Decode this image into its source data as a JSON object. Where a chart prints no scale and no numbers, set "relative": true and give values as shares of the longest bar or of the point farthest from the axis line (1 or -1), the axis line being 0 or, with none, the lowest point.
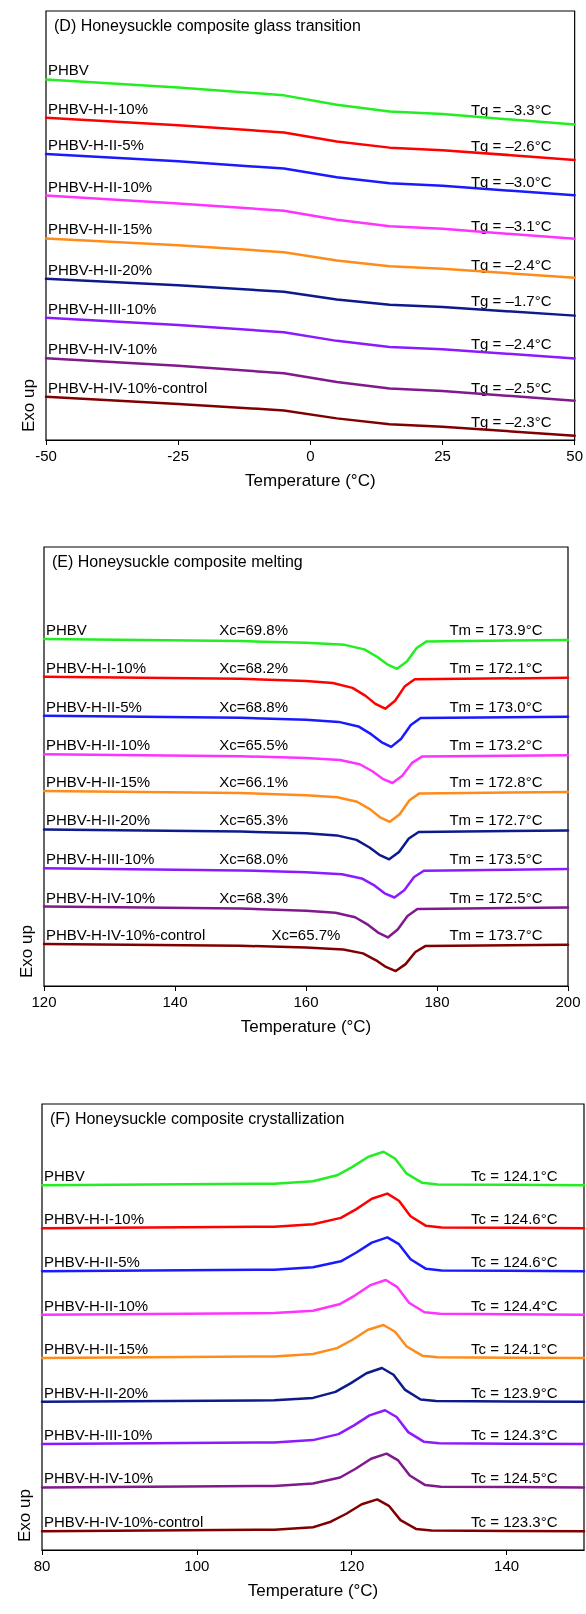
{
  "chart_data": [
    {
      "type": "line",
      "title": "(D) Honeysuckle composite glass transition",
      "xlabel": "Temperature (°C)",
      "ylabel": "Exo up",
      "relative": true,
      "tick_labels": "x",
      "xlim": [
        -50,
        50
      ],
      "xticks": [
        -50,
        -25,
        0,
        25,
        50
      ],
      "series": [
        {
          "name": "PHBV",
          "color": "#22ee22",
          "x": [
            -50,
            -25,
            -5,
            5,
            15,
            25,
            50
          ],
          "values": [
            1.0,
            0.978,
            0.956,
            0.93,
            0.911,
            0.904,
            0.875
          ]
        },
        {
          "name": "PHBV-H-I-10%",
          "color": "#ff0000",
          "x": [
            -50,
            -25,
            -5,
            5,
            15,
            25,
            50
          ],
          "values": [
            0.894,
            0.873,
            0.853,
            0.828,
            0.811,
            0.804,
            0.777
          ]
        },
        {
          "name": "PHBV-H-II-5%",
          "color": "#1a1aff",
          "x": [
            -50,
            -25,
            -5,
            5,
            15,
            25,
            50
          ],
          "values": [
            0.793,
            0.773,
            0.753,
            0.729,
            0.712,
            0.705,
            0.679
          ]
        },
        {
          "name": "PHBV-H-II-10%",
          "color": "#ff33ff",
          "x": [
            -50,
            -25,
            -5,
            5,
            15,
            25,
            50
          ],
          "values": [
            0.678,
            0.656,
            0.636,
            0.611,
            0.593,
            0.586,
            0.558
          ]
        },
        {
          "name": "PHBV-H-II-15%",
          "color": "#ff8c1a",
          "x": [
            -50,
            -25,
            -5,
            5,
            15,
            25,
            50
          ],
          "values": [
            0.559,
            0.54,
            0.521,
            0.498,
            0.482,
            0.475,
            0.45
          ]
        },
        {
          "name": "PHBV-H-II-20%",
          "color": "#0d1a8c",
          "x": [
            -50,
            -25,
            -5,
            5,
            15,
            25,
            50
          ],
          "values": [
            0.447,
            0.429,
            0.411,
            0.39,
            0.375,
            0.369,
            0.345
          ]
        },
        {
          "name": "PHBV-H-III-10%",
          "color": "#8c1aff",
          "x": [
            -50,
            -25,
            -5,
            5,
            15,
            25,
            50
          ],
          "values": [
            0.339,
            0.319,
            0.299,
            0.275,
            0.258,
            0.252,
            0.226
          ]
        },
        {
          "name": "PHBV-H-IV-10%",
          "color": "#80198c",
          "x": [
            -50,
            -25,
            -5,
            5,
            15,
            25,
            50
          ],
          "values": [
            0.227,
            0.206,
            0.185,
            0.161,
            0.143,
            0.136,
            0.109
          ]
        },
        {
          "name": "PHBV-H-IV-10%-control",
          "color": "#800000",
          "x": [
            -50,
            -25,
            -5,
            5,
            15,
            25,
            50
          ],
          "values": [
            0.12,
            0.1,
            0.082,
            0.06,
            0.044,
            0.037,
            0.012
          ]
        }
      ],
      "annotations": [
        {
          "text": "Tg = –3.3°C",
          "x": 38,
          "y": 0.89
        },
        {
          "text": "Tg = –2.6°C",
          "x": 38,
          "y": 0.79
        },
        {
          "text": "Tg = –3.0°C",
          "x": 38,
          "y": 0.69
        },
        {
          "text": "Tg = –3.1°C",
          "x": 38,
          "y": 0.57
        },
        {
          "text": "Tg = –2.4°C",
          "x": 38,
          "y": 0.46
        },
        {
          "text": "Tg = –1.7°C",
          "x": 38,
          "y": 0.36
        },
        {
          "text": "Tg = –2.4°C",
          "x": 38,
          "y": 0.24
        },
        {
          "text": "Tg = –2.5°C",
          "x": 38,
          "y": 0.12
        },
        {
          "text": "Tg = –2.3°C",
          "x": 38,
          "y": 0.025
        }
      ]
    },
    {
      "type": "line",
      "title": "(E) Honeysuckle composite melting",
      "xlabel": "Temperature (°C)",
      "ylabel": "Exo up",
      "relative": true,
      "tick_labels": "x",
      "xlim": [
        120,
        200
      ],
      "xticks": [
        120,
        140,
        160,
        180,
        200
      ],
      "series": [
        {
          "name": "PHBV",
          "color": "#22ee22",
          "x": [
            120,
            150,
            160,
            165.9,
            168.9,
            170.9,
            172.4,
            173.9,
            175.4,
            176.9,
            178.4,
            200
          ],
          "values": [
            1.0,
            0.994,
            0.989,
            0.983,
            0.97,
            0.948,
            0.927,
            0.914,
            0.935,
            0.974,
            0.993,
            0.997
          ]
        },
        {
          "name": "PHBV-H-I-10%",
          "color": "#ff0000",
          "x": [
            120,
            150,
            160,
            164.1,
            167.1,
            169.1,
            170.6,
            172.1,
            173.6,
            175.1,
            176.6,
            200
          ],
          "values": [
            0.891,
            0.885,
            0.879,
            0.873,
            0.859,
            0.836,
            0.813,
            0.799,
            0.822,
            0.864,
            0.884,
            0.888
          ]
        },
        {
          "name": "PHBV-H-II-5%",
          "color": "#1a1aff",
          "x": [
            120,
            150,
            160,
            165,
            168,
            170,
            171.5,
            173,
            174.5,
            176,
            177.5,
            200
          ],
          "values": [
            0.779,
            0.773,
            0.767,
            0.761,
            0.748,
            0.725,
            0.703,
            0.689,
            0.712,
            0.752,
            0.772,
            0.776
          ]
        },
        {
          "name": "PHBV-H-II-10%",
          "color": "#ff33ff",
          "x": [
            120,
            150,
            160,
            165.2,
            168.2,
            170.2,
            171.7,
            173.2,
            174.7,
            176.2,
            177.7,
            200
          ],
          "values": [
            0.668,
            0.662,
            0.657,
            0.651,
            0.639,
            0.618,
            0.597,
            0.585,
            0.606,
            0.643,
            0.661,
            0.665
          ]
        },
        {
          "name": "PHBV-H-II-15%",
          "color": "#ff8c1a",
          "x": [
            120,
            150,
            160,
            164.8,
            167.8,
            169.8,
            171.3,
            172.8,
            174.3,
            175.8,
            177.3,
            200
          ],
          "values": [
            0.562,
            0.556,
            0.55,
            0.544,
            0.531,
            0.509,
            0.486,
            0.473,
            0.495,
            0.535,
            0.555,
            0.559
          ]
        },
        {
          "name": "PHBV-H-II-20%",
          "color": "#0d1a8c",
          "x": [
            120,
            150,
            160,
            164.7,
            167.7,
            169.7,
            171.2,
            172.7,
            174.2,
            175.7,
            177.2,
            200
          ],
          "values": [
            0.451,
            0.445,
            0.44,
            0.434,
            0.421,
            0.399,
            0.378,
            0.365,
            0.386,
            0.425,
            0.444,
            0.448
          ]
        },
        {
          "name": "PHBV-H-III-10%",
          "color": "#8c1aff",
          "x": [
            120,
            150,
            160,
            165.5,
            168.5,
            170.5,
            172,
            173.5,
            175,
            176.5,
            178,
            200
          ],
          "values": [
            0.339,
            0.333,
            0.328,
            0.322,
            0.31,
            0.289,
            0.267,
            0.255,
            0.276,
            0.314,
            0.332,
            0.337
          ]
        },
        {
          "name": "PHBV-H-IV-10%",
          "color": "#80198c",
          "x": [
            120,
            150,
            160,
            164.5,
            167.5,
            169.5,
            171,
            172.5,
            174,
            175.5,
            177,
            200
          ],
          "values": [
            0.229,
            0.223,
            0.217,
            0.211,
            0.198,
            0.176,
            0.154,
            0.14,
            0.163,
            0.202,
            0.222,
            0.226
          ]
        },
        {
          "name": "PHBV-H-IV-10%-control",
          "color": "#800000",
          "x": [
            120,
            150,
            160,
            165.7,
            168.7,
            170.7,
            172.2,
            173.7,
            175.2,
            176.7,
            178.2,
            200
          ],
          "values": [
            0.121,
            0.116,
            0.111,
            0.105,
            0.094,
            0.074,
            0.055,
            0.043,
            0.063,
            0.098,
            0.115,
            0.119
          ]
        }
      ],
      "annotations": [
        {
          "text": "Xc=69.8%",
          "x": 152,
          "y": 1.0
        },
        {
          "text": "Xc=68.2%",
          "x": 152,
          "y": 0.891
        },
        {
          "text": "Xc=68.8%",
          "x": 152,
          "y": 0.779
        },
        {
          "text": "Xc=65.5%",
          "x": 152,
          "y": 0.668
        },
        {
          "text": "Xc=66.1%",
          "x": 152,
          "y": 0.562
        },
        {
          "text": "Xc=65.3%",
          "x": 152,
          "y": 0.451
        },
        {
          "text": "Xc=68.0%",
          "x": 152,
          "y": 0.339
        },
        {
          "text": "Xc=68.3%",
          "x": 152,
          "y": 0.229
        },
        {
          "text": "Xc=65.7%",
          "x": 160,
          "y": 0.121
        },
        {
          "text": "Tm = 173.9°C",
          "x": 189,
          "y": 1.0
        },
        {
          "text": "Tm = 172.1°C",
          "x": 189,
          "y": 0.891
        },
        {
          "text": "Tm = 173.0°C",
          "x": 189,
          "y": 0.779
        },
        {
          "text": "Tm = 173.2°C",
          "x": 189,
          "y": 0.668
        },
        {
          "text": "Tm = 172.8°C",
          "x": 189,
          "y": 0.562
        },
        {
          "text": "Tm = 172.7°C",
          "x": 189,
          "y": 0.451
        },
        {
          "text": "Tm = 173.5°C",
          "x": 189,
          "y": 0.339
        },
        {
          "text": "Tm = 172.5°C",
          "x": 189,
          "y": 0.229
        },
        {
          "text": "Tm = 173.7°C",
          "x": 189,
          "y": 0.121
        }
      ]
    },
    {
      "type": "line",
      "title": "(F) Honeysuckle composite crystallization",
      "xlabel": "Temperature (°C)",
      "ylabel": "Exo up",
      "relative": true,
      "tick_labels": "x",
      "xlim": [
        80,
        150
      ],
      "xticks": [
        80,
        100,
        120,
        140
      ],
      "series": [
        {
          "name": "PHBV",
          "color": "#22ee22",
          "x": [
            80,
            110,
            115,
            118.1,
            120.1,
            122.1,
            124.1,
            125.6,
            127.1,
            129.1,
            131.1,
            150
          ],
          "values": [
            0.916,
            0.92,
            0.926,
            0.941,
            0.962,
            0.987,
            1.0,
            0.983,
            0.945,
            0.922,
            0.918,
            0.916
          ]
        },
        {
          "name": "PHBV-H-I-10%",
          "color": "#ff0000",
          "x": [
            80,
            110,
            115,
            118.6,
            120.6,
            122.6,
            124.6,
            126.1,
            127.6,
            129.6,
            131.6,
            150
          ],
          "values": [
            0.808,
            0.812,
            0.818,
            0.834,
            0.856,
            0.882,
            0.895,
            0.877,
            0.838,
            0.814,
            0.81,
            0.808
          ]
        },
        {
          "name": "PHBV-H-II-5%",
          "color": "#1a1aff",
          "x": [
            80,
            110,
            115,
            118.6,
            120.6,
            122.6,
            124.6,
            126.1,
            127.6,
            129.6,
            131.6,
            150
          ],
          "values": [
            0.7,
            0.704,
            0.71,
            0.725,
            0.747,
            0.772,
            0.785,
            0.768,
            0.73,
            0.706,
            0.702,
            0.7
          ]
        },
        {
          "name": "PHBV-H-II-10%",
          "color": "#ff33ff",
          "x": [
            80,
            110,
            115,
            118.4,
            120.4,
            122.4,
            124.4,
            125.9,
            127.4,
            129.4,
            131.4,
            150
          ],
          "values": [
            0.591,
            0.595,
            0.601,
            0.617,
            0.639,
            0.665,
            0.678,
            0.66,
            0.621,
            0.597,
            0.593,
            0.591
          ]
        },
        {
          "name": "PHBV-H-II-15%",
          "color": "#ff8c1a",
          "x": [
            80,
            110,
            115,
            118.1,
            120.1,
            122.1,
            124.1,
            125.6,
            127.1,
            129.1,
            131.1,
            150
          ],
          "values": [
            0.482,
            0.486,
            0.492,
            0.507,
            0.528,
            0.553,
            0.565,
            0.548,
            0.511,
            0.488,
            0.484,
            0.482
          ]
        },
        {
          "name": "PHBV-H-II-20%",
          "color": "#0d1a8c",
          "x": [
            80,
            110,
            115,
            117.9,
            119.9,
            121.9,
            123.9,
            125.4,
            126.9,
            128.9,
            130.9,
            150
          ],
          "values": [
            0.372,
            0.376,
            0.382,
            0.397,
            0.419,
            0.444,
            0.457,
            0.44,
            0.402,
            0.378,
            0.374,
            0.372
          ]
        },
        {
          "name": "PHBV-H-III-10%",
          "color": "#8c1aff",
          "x": [
            80,
            110,
            115,
            118.3,
            120.3,
            122.3,
            124.3,
            125.8,
            127.3,
            129.3,
            131.3,
            150
          ],
          "values": [
            0.266,
            0.27,
            0.276,
            0.291,
            0.313,
            0.338,
            0.351,
            0.334,
            0.296,
            0.272,
            0.268,
            0.266
          ]
        },
        {
          "name": "PHBV-H-IV-10%",
          "color": "#80198c",
          "x": [
            80,
            110,
            115,
            118.5,
            120.5,
            122.5,
            124.5,
            126,
            127.5,
            129.5,
            131.5,
            150
          ],
          "values": [
            0.157,
            0.161,
            0.167,
            0.182,
            0.204,
            0.229,
            0.242,
            0.225,
            0.187,
            0.163,
            0.159,
            0.157
          ]
        },
        {
          "name": "PHBV-H-IV-10%-control",
          "color": "#800000",
          "x": [
            80,
            110,
            115,
            117.3,
            119.3,
            121.3,
            123.3,
            124.8,
            126.3,
            128.3,
            130.3,
            150
          ],
          "values": [
            0.047,
            0.051,
            0.057,
            0.071,
            0.091,
            0.115,
            0.127,
            0.111,
            0.075,
            0.053,
            0.049,
            0.047
          ]
        }
      ],
      "annotations": [
        {
          "text": "Tc = 124.1°C",
          "x": 141,
          "y": 0.916
        },
        {
          "text": "Tc = 124.6°C",
          "x": 141,
          "y": 0.808
        },
        {
          "text": "Tc = 124.6°C",
          "x": 141,
          "y": 0.7
        },
        {
          "text": "Tc = 124.4°C",
          "x": 141,
          "y": 0.591
        },
        {
          "text": "Tc = 124.1°C",
          "x": 141,
          "y": 0.482
        },
        {
          "text": "Tc = 123.9°C",
          "x": 141,
          "y": 0.372
        },
        {
          "text": "Tc = 124.3°C",
          "x": 141,
          "y": 0.266
        },
        {
          "text": "Tc = 124.5°C",
          "x": 141,
          "y": 0.157
        },
        {
          "text": "Tc = 123.3°C",
          "x": 141,
          "y": 0.047
        }
      ]
    }
  ]
}
